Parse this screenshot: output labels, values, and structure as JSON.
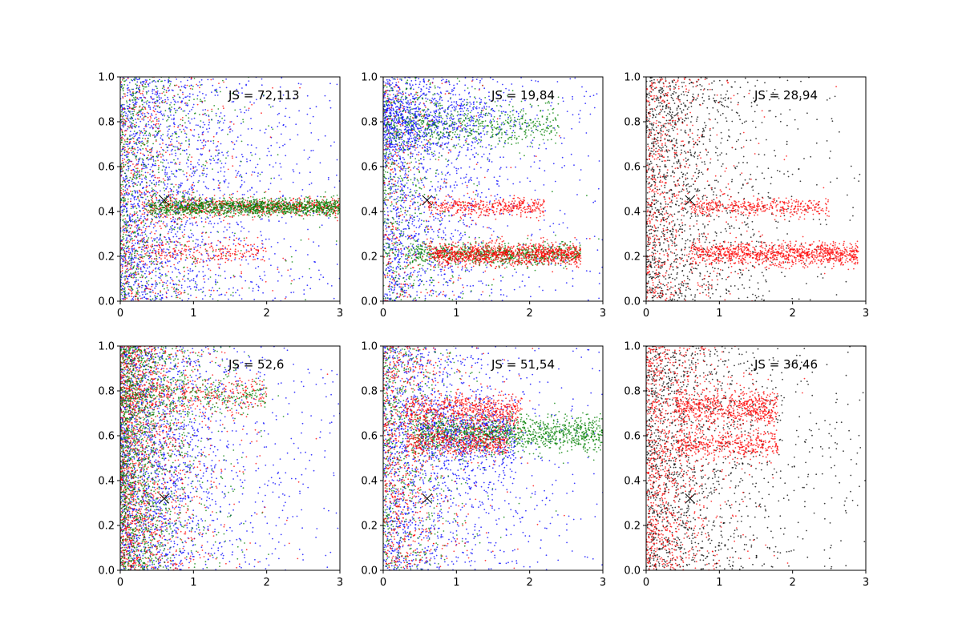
{
  "chart_data": [
    {
      "type": "scatter",
      "annotation": "JS = 72,113",
      "xlim": [
        0,
        3
      ],
      "ylim": [
        0,
        1
      ],
      "xticks": [
        "0",
        "1",
        "2",
        "3"
      ],
      "yticks": [
        "0.0",
        "0.2",
        "0.4",
        "0.6",
        "0.8",
        "1.0"
      ],
      "marker": {
        "x": 0.6,
        "y": 0.45
      },
      "series": [
        {
          "color": "#0000ff",
          "count": 2000,
          "clusters": [
            {
              "w": 1.0,
              "xd": "exp",
              "xs": 0.95,
              "y": "uniform"
            }
          ]
        },
        {
          "color": "#ff0000",
          "count": 1500,
          "clusters": [
            {
              "w": 0.45,
              "xd": "uniform",
              "xmin": 0.3,
              "xmax": 3.0,
              "y": 0.42,
              "ys": 0.02
            },
            {
              "w": 0.15,
              "xd": "uniform",
              "xmin": 0.3,
              "xmax": 2.0,
              "y": 0.22,
              "ys": 0.025
            },
            {
              "w": 0.4,
              "xd": "exp",
              "xs": 0.55,
              "y": "uniform"
            }
          ]
        },
        {
          "color": "#008000",
          "count": 2000,
          "clusters": [
            {
              "w": 0.6,
              "xd": "uniform",
              "xmin": 0.4,
              "xmax": 3.0,
              "y": 0.42,
              "ys": 0.02
            },
            {
              "w": 0.4,
              "xd": "exp",
              "xs": 0.5,
              "y": "uniform"
            }
          ]
        }
      ]
    },
    {
      "type": "scatter",
      "annotation": "JS = 19,84",
      "xlim": [
        0,
        3
      ],
      "ylim": [
        0,
        1
      ],
      "xticks": [
        "0",
        "1",
        "2",
        "3"
      ],
      "yticks": [
        "0.0",
        "0.2",
        "0.4",
        "0.6",
        "0.8",
        "1.0"
      ],
      "marker": {
        "x": 0.6,
        "y": 0.45
      },
      "series": [
        {
          "color": "#0000ff",
          "count": 2200,
          "clusters": [
            {
              "w": 0.3,
              "xd": "exp",
              "xs": 0.7,
              "y": 0.8,
              "ys": 0.07
            },
            {
              "w": 0.7,
              "xd": "exp",
              "xs": 0.8,
              "y": "uniform"
            }
          ]
        },
        {
          "color": "#008000",
          "count": 1800,
          "clusters": [
            {
              "w": 0.3,
              "xd": "uniform",
              "xmin": 0.0,
              "xmax": 2.4,
              "y": 0.78,
              "ys": 0.05
            },
            {
              "w": 0.4,
              "xd": "uniform",
              "xmin": 0.3,
              "xmax": 2.7,
              "y": 0.21,
              "ys": 0.025
            },
            {
              "w": 0.3,
              "xd": "exp",
              "xs": 0.4,
              "y": "uniform"
            }
          ]
        },
        {
          "color": "#ff0000",
          "count": 1800,
          "clusters": [
            {
              "w": 0.2,
              "xd": "uniform",
              "xmin": 0.6,
              "xmax": 2.2,
              "y": 0.42,
              "ys": 0.02
            },
            {
              "w": 0.6,
              "xd": "uniform",
              "xmin": 0.6,
              "xmax": 2.7,
              "y": 0.21,
              "ys": 0.025
            },
            {
              "w": 0.2,
              "xd": "exp",
              "xs": 0.4,
              "y": "uniform"
            }
          ]
        }
      ]
    },
    {
      "type": "scatter",
      "annotation": "JS = 28,94",
      "xlim": [
        0,
        3
      ],
      "ylim": [
        0,
        1
      ],
      "xticks": [
        "0",
        "1",
        "2",
        "3"
      ],
      "yticks": [
        "0.0",
        "0.2",
        "0.4",
        "0.6",
        "0.8",
        "1.0"
      ],
      "marker": {
        "x": 0.6,
        "y": 0.45
      },
      "series": [
        {
          "color": "#000000",
          "count": 1500,
          "clusters": [
            {
              "w": 1.0,
              "xd": "exp",
              "xs": 0.7,
              "y": "uniform"
            }
          ]
        },
        {
          "color": "#ff0000",
          "count": 2000,
          "clusters": [
            {
              "w": 0.2,
              "xd": "uniform",
              "xmin": 0.6,
              "xmax": 2.5,
              "y": 0.42,
              "ys": 0.02
            },
            {
              "w": 0.5,
              "xd": "uniform",
              "xmin": 0.6,
              "xmax": 2.9,
              "y": 0.21,
              "ys": 0.025
            },
            {
              "w": 0.3,
              "xd": "exp",
              "xs": 0.4,
              "y": "uniform"
            }
          ]
        }
      ]
    },
    {
      "type": "scatter",
      "annotation": "JS = 52,6",
      "xlim": [
        0,
        3
      ],
      "ylim": [
        0,
        1
      ],
      "xticks": [
        "0",
        "1",
        "2",
        "3"
      ],
      "yticks": [
        "0.0",
        "0.2",
        "0.4",
        "0.6",
        "0.8",
        "1.0"
      ],
      "marker": {
        "x": 0.6,
        "y": 0.32
      },
      "series": [
        {
          "color": "#0000ff",
          "count": 2000,
          "clusters": [
            {
              "w": 1.0,
              "xd": "exp",
              "xs": 0.8,
              "y": "uniform"
            }
          ]
        },
        {
          "color": "#ff0000",
          "count": 1800,
          "clusters": [
            {
              "w": 0.15,
              "xd": "uniform",
              "xmin": 0.0,
              "xmax": 2.0,
              "y": 0.78,
              "ys": 0.04
            },
            {
              "w": 0.85,
              "xd": "exp",
              "xs": 0.4,
              "y": "uniform"
            }
          ]
        },
        {
          "color": "#008000",
          "count": 1800,
          "clusters": [
            {
              "w": 0.15,
              "xd": "uniform",
              "xmin": 0.0,
              "xmax": 2.0,
              "y": 0.78,
              "ys": 0.04
            },
            {
              "w": 0.85,
              "xd": "exp",
              "xs": 0.4,
              "y": "uniform"
            }
          ]
        }
      ]
    },
    {
      "type": "scatter",
      "annotation": "JS = 51,54",
      "xlim": [
        0,
        3
      ],
      "ylim": [
        0,
        1
      ],
      "xticks": [
        "0",
        "1",
        "2",
        "3"
      ],
      "yticks": [
        "0.0",
        "0.2",
        "0.4",
        "0.6",
        "0.8",
        "1.0"
      ],
      "marker": {
        "x": 0.6,
        "y": 0.32
      },
      "series": [
        {
          "color": "#0000ff",
          "count": 2200,
          "clusters": [
            {
              "w": 0.3,
              "xd": "uniform",
              "xmin": 0.5,
              "xmax": 1.8,
              "y": 0.6,
              "ys": 0.08
            },
            {
              "w": 0.7,
              "xd": "exp",
              "xs": 0.85,
              "y": "uniform"
            }
          ]
        },
        {
          "color": "#008000",
          "count": 1800,
          "clusters": [
            {
              "w": 0.65,
              "xd": "uniform",
              "xmin": 0.4,
              "xmax": 3.0,
              "y": 0.61,
              "ys": 0.04
            },
            {
              "w": 0.35,
              "xd": "exp",
              "xs": 0.4,
              "y": "uniform"
            }
          ]
        },
        {
          "color": "#ff0000",
          "count": 1800,
          "clusters": [
            {
              "w": 0.35,
              "xd": "uniform",
              "xmin": 0.3,
              "xmax": 1.9,
              "y": 0.71,
              "ys": 0.04
            },
            {
              "w": 0.25,
              "xd": "uniform",
              "xmin": 0.3,
              "xmax": 1.7,
              "y": 0.57,
              "ys": 0.03
            },
            {
              "w": 0.4,
              "xd": "exp",
              "xs": 0.4,
              "y": "uniform"
            }
          ]
        }
      ]
    },
    {
      "type": "scatter",
      "annotation": "JS = 36,46",
      "xlim": [
        0,
        3
      ],
      "ylim": [
        0,
        1
      ],
      "xticks": [
        "0",
        "1",
        "2",
        "3"
      ],
      "yticks": [
        "0.0",
        "0.2",
        "0.4",
        "0.6",
        "0.8",
        "1.0"
      ],
      "marker": {
        "x": 0.6,
        "y": 0.32
      },
      "series": [
        {
          "color": "#000000",
          "count": 1600,
          "clusters": [
            {
              "w": 1.0,
              "xd": "exp",
              "xs": 0.9,
              "y": "uniform"
            }
          ]
        },
        {
          "color": "#ff0000",
          "count": 2000,
          "clusters": [
            {
              "w": 0.3,
              "xd": "uniform",
              "xmin": 0.4,
              "xmax": 1.8,
              "y": 0.72,
              "ys": 0.04
            },
            {
              "w": 0.2,
              "xd": "uniform",
              "xmin": 0.4,
              "xmax": 1.8,
              "y": 0.56,
              "ys": 0.03
            },
            {
              "w": 0.5,
              "xd": "exp",
              "xs": 0.4,
              "y": "uniform"
            }
          ]
        }
      ]
    }
  ]
}
